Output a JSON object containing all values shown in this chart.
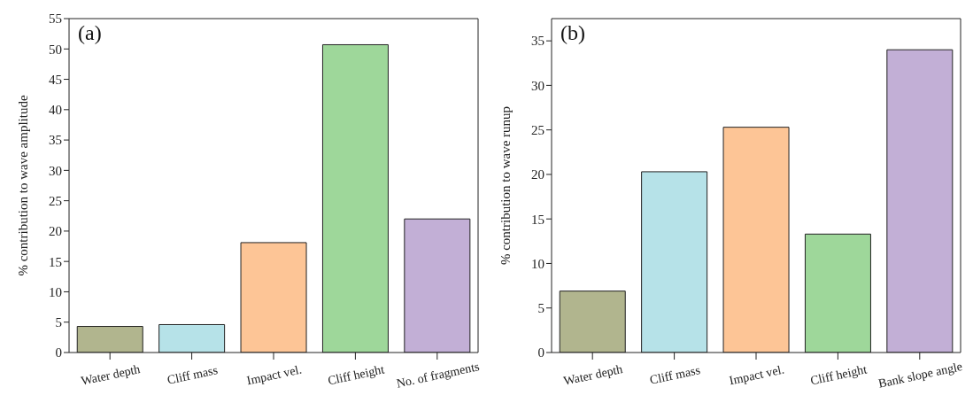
{
  "chart_data": [
    {
      "type": "bar",
      "categories": [
        "Water depth",
        "Cliff mass",
        "Impact vel.",
        "Cliff height",
        "No. of fragments"
      ],
      "values": [
        4.3,
        4.6,
        18.1,
        50.7,
        22.0
      ],
      "colors": [
        "#b1b58e",
        "#b6e2e8",
        "#fdc596",
        "#9ed79a",
        "#c2afd6"
      ],
      "ylabel": "% contribution to  wave amplitude",
      "ylim": [
        0,
        55
      ],
      "yticks": [
        0,
        5,
        10,
        15,
        20,
        25,
        30,
        35,
        40,
        45,
        50,
        55
      ],
      "annotations": [
        "(a)"
      ]
    },
    {
      "type": "bar",
      "categories": [
        "Water depth",
        "Cliff mass",
        "Impact vel.",
        "Cliff height",
        "Bank slope angle"
      ],
      "values": [
        6.9,
        20.3,
        25.3,
        13.3,
        34.0
      ],
      "colors": [
        "#b1b58e",
        "#b6e2e8",
        "#fdc596",
        "#9ed79a",
        "#c2afd6"
      ],
      "ylabel": "% contribution to  wave runup",
      "ylim": [
        0,
        37.5
      ],
      "yticks": [
        0,
        5,
        10,
        15,
        20,
        25,
        30,
        35
      ],
      "annotations": [
        "(b)"
      ]
    }
  ]
}
